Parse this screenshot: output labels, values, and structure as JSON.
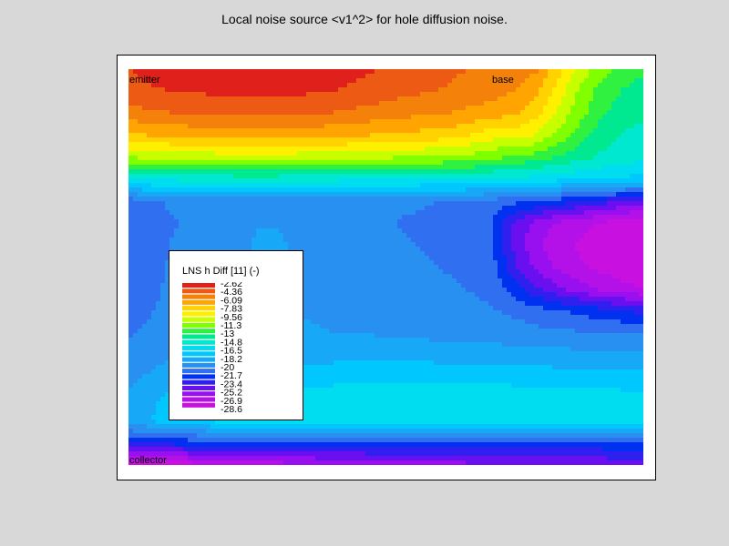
{
  "chart_data": {
    "type": "heatmap",
    "title": "Local noise source <v1^2> for hole diffusion noise.",
    "quantity_label": "LNS h Diff [11] (-)",
    "region_labels": {
      "emitter": "emitter",
      "base": "base",
      "collector": "collector"
    },
    "legend_ticks": [
      "-2.62",
      "-4.36",
      "-6.09",
      "-7.83",
      "-9.56",
      "-11.3",
      "-13",
      "-14.8",
      "-16.5",
      "-18.2",
      "-20",
      "-21.7",
      "-23.4",
      "-25.2",
      "-26.9",
      "-28.6"
    ],
    "colormap": [
      "#e0201a",
      "#ec5a14",
      "#f4820a",
      "#ffa400",
      "#ffd200",
      "#fff000",
      "#c8ff00",
      "#80ff00",
      "#30f040",
      "#00e890",
      "#00e8d0",
      "#00ddf0",
      "#00c8ff",
      "#18a8f8",
      "#2890f0",
      "#3070f0",
      "#0030f0",
      "#3020f0",
      "#6a10f0",
      "#9810f0",
      "#b410e8",
      "#c810e0"
    ],
    "value_range": [
      -28.6,
      -2.62
    ],
    "x_points": 25,
    "y_points": 19,
    "rows": [
      [
        -3.8,
        -3.4,
        -3.1,
        -3.0,
        -2.8,
        -2.7,
        -2.7,
        -2.7,
        -2.8,
        -2.9,
        -3.2,
        -3.6,
        -3.9,
        -4.3,
        -4.5,
        -4.8,
        -5.0,
        -5.3,
        -5.6,
        -6.0,
        -8.0,
        -10.0,
        -11.5,
        -12.5,
        -13.0
      ],
      [
        -4.2,
        -4.0,
        -3.8,
        -3.7,
        -3.6,
        -3.5,
        -3.5,
        -3.5,
        -3.6,
        -3.7,
        -3.9,
        -4.2,
        -4.4,
        -4.7,
        -4.9,
        -5.1,
        -5.4,
        -5.7,
        -6.2,
        -7.0,
        -9.0,
        -11.0,
        -12.5,
        -13.3,
        -13.8
      ],
      [
        -5.5,
        -5.2,
        -5.0,
        -4.9,
        -4.8,
        -4.7,
        -4.7,
        -4.7,
        -4.8,
        -4.9,
        -5.1,
        -5.4,
        -5.6,
        -5.8,
        -6.0,
        -6.2,
        -6.5,
        -6.8,
        -7.2,
        -8.0,
        -9.8,
        -11.6,
        -13.0,
        -13.8,
        -14.2
      ],
      [
        -7.5,
        -7.3,
        -7.1,
        -7.0,
        -6.9,
        -6.8,
        -6.8,
        -6.8,
        -6.9,
        -7.0,
        -7.1,
        -7.3,
        -7.5,
        -7.6,
        -7.8,
        -8.0,
        -8.6,
        -9.2,
        -9.2,
        -9.8,
        -11.2,
        -12.6,
        -13.8,
        -14.5,
        -14.8
      ],
      [
        -10.8,
        -10.6,
        -10.5,
        -10.4,
        -10.3,
        -10.2,
        -10.2,
        -10.2,
        -10.3,
        -10.4,
        -10.5,
        -10.6,
        -10.7,
        -10.8,
        -10.9,
        -11.0,
        -11.3,
        -11.8,
        -12.2,
        -12.6,
        -13.4,
        -14.0,
        -14.6,
        -15.0,
        -15.2
      ],
      [
        -15.5,
        -15.4,
        -15.3,
        -15.2,
        -15.2,
        -15.1,
        -15.1,
        -15.1,
        -15.2,
        -15.2,
        -15.3,
        -15.3,
        -15.4,
        -15.4,
        -15.5,
        -15.5,
        -15.6,
        -15.8,
        -16.0,
        -16.2,
        -16.4,
        -16.6,
        -16.8,
        -17.0,
        -17.2
      ],
      [
        -21.0,
        -20.5,
        -20.2,
        -20.0,
        -19.9,
        -19.8,
        -19.8,
        -19.8,
        -19.8,
        -19.9,
        -20.0,
        -20.1,
        -20.2,
        -20.2,
        -20.3,
        -20.4,
        -20.6,
        -20.8,
        -21.2,
        -21.6,
        -22.0,
        -22.6,
        -23.2,
        -23.8,
        -24.3
      ],
      [
        -21.5,
        -20.8,
        -20.4,
        -20.2,
        -20.1,
        -19.8,
        -19.2,
        -19.2,
        -19.6,
        -19.8,
        -20.0,
        -20.2,
        -20.3,
        -20.4,
        -20.5,
        -20.6,
        -20.9,
        -21.6,
        -24.0,
        -25.6,
        -26.4,
        -27.0,
        -27.6,
        -28.2,
        -28.6
      ],
      [
        -21.4,
        -20.8,
        -20.3,
        -20.1,
        -20.0,
        -19.6,
        -19.0,
        -19.0,
        -19.4,
        -19.7,
        -19.9,
        -20.1,
        -20.2,
        -20.3,
        -20.4,
        -20.5,
        -20.8,
        -21.4,
        -24.2,
        -26.0,
        -27.0,
        -27.6,
        -28.2,
        -28.5,
        -28.6
      ],
      [
        -21.3,
        -20.7,
        -20.2,
        -20.0,
        -19.9,
        -19.5,
        -19.0,
        -19.0,
        -19.3,
        -19.6,
        -19.8,
        -20.0,
        -20.1,
        -20.2,
        -20.3,
        -20.4,
        -20.7,
        -21.2,
        -23.6,
        -25.4,
        -26.4,
        -27.2,
        -27.8,
        -28.2,
        -28.5
      ],
      [
        -21.1,
        -20.6,
        -20.1,
        -19.9,
        -19.8,
        -19.4,
        -19.0,
        -19.0,
        -19.2,
        -19.5,
        -19.7,
        -19.8,
        -19.9,
        -20.0,
        -20.1,
        -20.2,
        -20.4,
        -20.8,
        -22.2,
        -23.6,
        -24.8,
        -25.6,
        -26.4,
        -27.0,
        -27.4
      ],
      [
        -20.8,
        -20.4,
        -20.0,
        -19.8,
        -19.6,
        -19.4,
        -19.1,
        -19.1,
        -19.2,
        -19.3,
        -19.4,
        -19.5,
        -19.6,
        -19.7,
        -19.8,
        -19.9,
        -20.0,
        -20.2,
        -20.6,
        -21.0,
        -21.4,
        -21.8,
        -22.2,
        -22.6,
        -23.0
      ],
      [
        -20.5,
        -20.1,
        -19.8,
        -19.6,
        -19.4,
        -19.2,
        -19.0,
        -19.0,
        -19.0,
        -19.1,
        -19.2,
        -19.2,
        -19.3,
        -19.4,
        -19.5,
        -19.5,
        -19.6,
        -19.7,
        -19.8,
        -20.0,
        -20.1,
        -20.2,
        -20.3,
        -20.4,
        -20.5
      ],
      [
        -20.0,
        -19.6,
        -19.3,
        -19.1,
        -18.9,
        -18.7,
        -18.5,
        -18.4,
        -18.4,
        -18.4,
        -18.3,
        -18.3,
        -18.3,
        -18.4,
        -18.4,
        -18.5,
        -18.5,
        -18.6,
        -18.6,
        -18.7,
        -18.7,
        -18.8,
        -18.8,
        -18.9,
        -18.9
      ],
      [
        -19.5,
        -19.0,
        -18.6,
        -18.3,
        -18.1,
        -17.9,
        -17.7,
        -17.5,
        -17.4,
        -17.3,
        -17.2,
        -17.1,
        -17.1,
        -17.1,
        -17.1,
        -17.1,
        -17.2,
        -17.2,
        -17.3,
        -17.3,
        -17.4,
        -17.4,
        -17.5,
        -17.5,
        -17.6
      ],
      [
        -19.0,
        -18.3,
        -17.6,
        -17.2,
        -16.9,
        -16.6,
        -16.4,
        -16.3,
        -16.2,
        -16.1,
        -16.0,
        -16.0,
        -15.9,
        -15.9,
        -15.9,
        -15.9,
        -15.9,
        -16.0,
        -16.0,
        -16.1,
        -16.1,
        -16.2,
        -16.2,
        -16.3,
        -16.3
      ],
      [
        -18.8,
        -18.0,
        -17.3,
        -16.9,
        -16.6,
        -16.3,
        -16.1,
        -16.0,
        -15.9,
        -15.8,
        -15.7,
        -15.7,
        -15.7,
        -15.7,
        -15.7,
        -15.7,
        -15.7,
        -15.8,
        -15.8,
        -15.9,
        -15.9,
        -16.0,
        -16.0,
        -16.1,
        -16.1
      ],
      [
        -22.5,
        -22.4,
        -22.3,
        -22.2,
        -22.1,
        -22.0,
        -21.9,
        -21.9,
        -21.9,
        -21.9,
        -21.9,
        -21.9,
        -21.9,
        -21.9,
        -21.9,
        -21.9,
        -21.9,
        -21.9,
        -21.9,
        -21.9,
        -21.9,
        -21.9,
        -21.9,
        -21.9,
        -21.9
      ],
      [
        -28.6,
        -28.5,
        -28.3,
        -28.0,
        -27.7,
        -27.4,
        -27.1,
        -26.8,
        -26.6,
        -26.4,
        -26.2,
        -26.0,
        -25.8,
        -25.7,
        -25.6,
        -25.5,
        -25.4,
        -25.3,
        -25.2,
        -25.1,
        -25.0,
        -24.9,
        -24.8,
        -24.7,
        -24.6
      ]
    ]
  }
}
